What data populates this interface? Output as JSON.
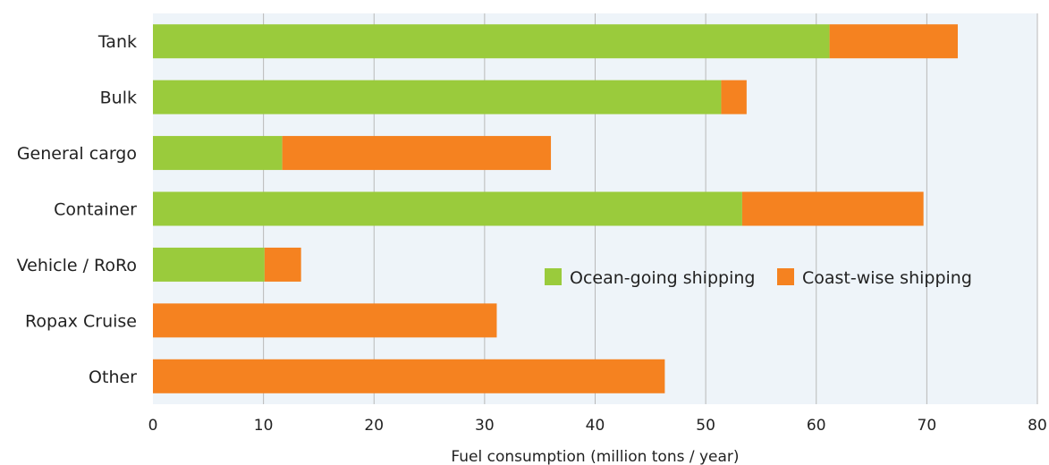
{
  "chart_data": {
    "type": "bar",
    "orientation": "horizontal",
    "stacked": true,
    "categories": [
      "Tank",
      "Bulk",
      "General cargo",
      "Container",
      "Vehicle / RoRo",
      "Ropax Cruise",
      "Other"
    ],
    "series": [
      {
        "name": "Ocean-going shipping",
        "color": "#9acb3c",
        "values": [
          61.2,
          51.4,
          11.7,
          53.3,
          10.1,
          0,
          0
        ]
      },
      {
        "name": "Coast-wise shipping",
        "color": "#f58220",
        "values": [
          11.6,
          2.3,
          24.3,
          16.4,
          3.3,
          31.1,
          46.3
        ]
      }
    ],
    "title": "",
    "xlabel": "Fuel consumption (million tons / year)",
    "ylabel": "",
    "xlim": [
      0,
      80
    ],
    "xticks": [
      0,
      10,
      20,
      30,
      40,
      50,
      60,
      70,
      80
    ],
    "grid": "vertical",
    "legend_position": "center-right",
    "background_color": "#eef4f9"
  }
}
